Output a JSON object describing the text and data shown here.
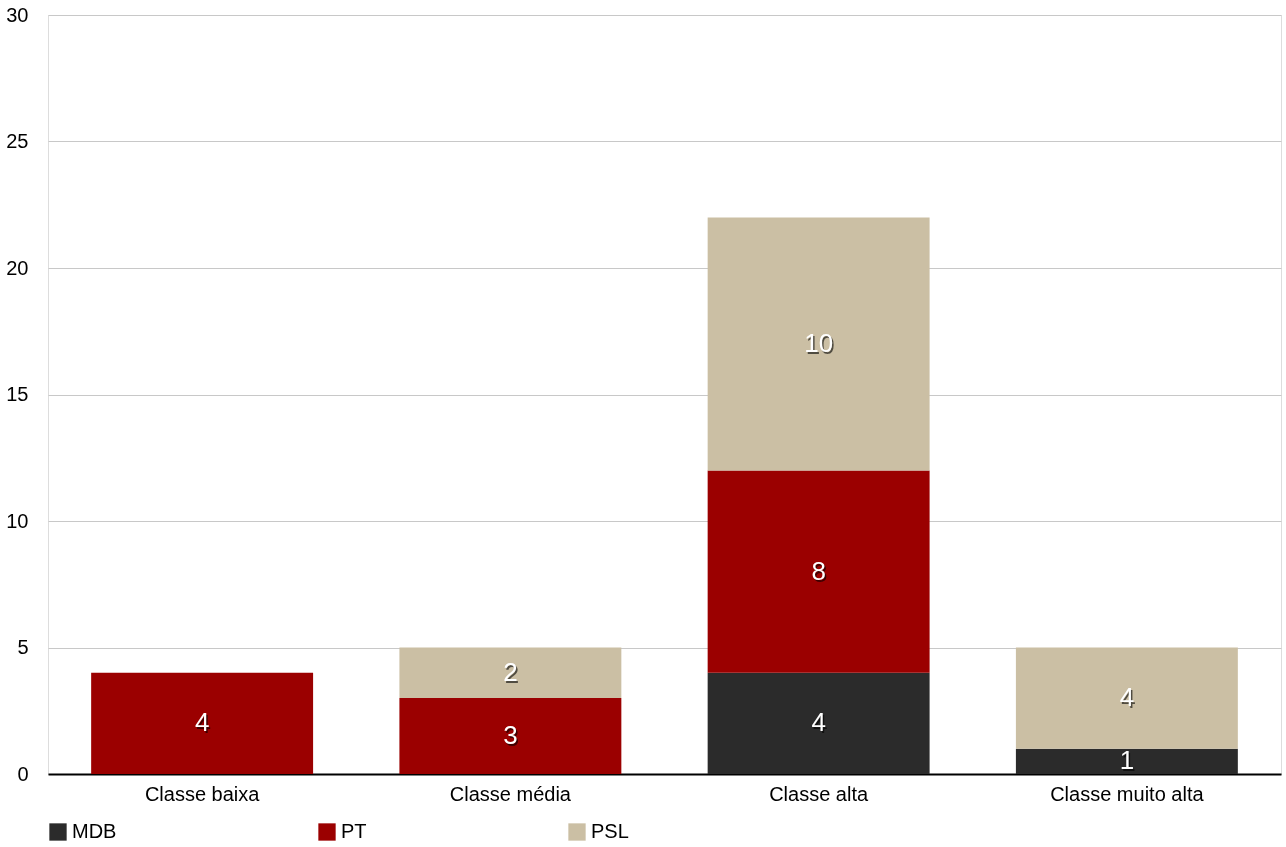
{
  "chart_data": {
    "type": "bar",
    "stacked": true,
    "categories": [
      "Classe baixa",
      "Classe média",
      "Classe alta",
      "Classe muito alta"
    ],
    "series": [
      {
        "name": "MDB",
        "color": "#2b2b2b",
        "values": [
          null,
          null,
          4,
          1
        ]
      },
      {
        "name": "PT",
        "color": "#9b0000",
        "values": [
          4,
          3,
          8,
          null
        ]
      },
      {
        "name": "PSL",
        "color": "#cbbfa4",
        "values": [
          null,
          2,
          10,
          4
        ]
      }
    ],
    "ylim": [
      0,
      30
    ],
    "yticks": [
      0,
      5,
      10,
      15,
      20,
      25,
      30
    ],
    "grid": "y",
    "legend": "bottom",
    "data_labels": true
  }
}
